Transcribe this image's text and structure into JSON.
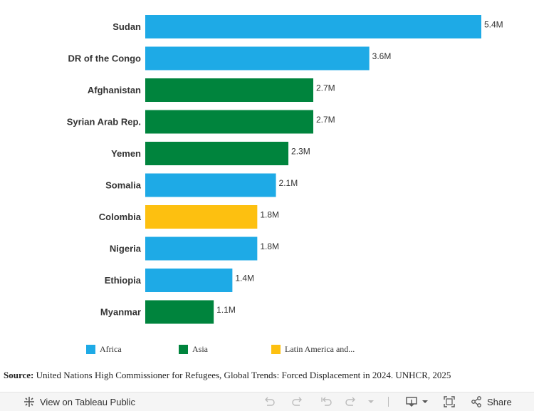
{
  "chart_data": {
    "type": "bar",
    "orientation": "horizontal",
    "categories": [
      "Sudan",
      "DR of the Congo",
      "Afghanistan",
      "Syrian Arab Rep.",
      "Yemen",
      "Somalia",
      "Colombia",
      "Nigeria",
      "Ethiopia",
      "Myanmar"
    ],
    "values": [
      5.4,
      3.6,
      2.7,
      2.7,
      2.3,
      2.1,
      1.8,
      1.8,
      1.4,
      1.1
    ],
    "value_labels": [
      "5.4M",
      "3.6M",
      "2.7M",
      "2.7M",
      "2.3M",
      "2.1M",
      "1.8M",
      "1.8M",
      "1.4M",
      "1.1M"
    ],
    "regions": [
      "Africa",
      "Africa",
      "Asia",
      "Asia",
      "Asia",
      "Africa",
      "Latin America and...",
      "Africa",
      "Africa",
      "Asia"
    ],
    "xlim": [
      0,
      5.4
    ],
    "grid": false,
    "legend_position": "bottom",
    "legend": [
      {
        "label": "Africa",
        "color": "#1eaae6"
      },
      {
        "label": "Asia",
        "color": "#00843d"
      },
      {
        "label": "Latin America and...",
        "color": "#fdc010"
      }
    ]
  },
  "source": {
    "label": "Source:",
    "text": "United Nations High Commissioner for Refugees, Global Trends: Forced Displacement in 2024. UNHCR, 2025"
  },
  "toolbar": {
    "view_label": "View on Tableau Public",
    "share_label": "Share",
    "icons": [
      "tableau-logo-icon",
      "undo-icon",
      "redo-icon",
      "revert-icon",
      "refresh-icon",
      "pause-icon",
      "download-icon",
      "fullscreen-icon",
      "share-icon"
    ]
  }
}
